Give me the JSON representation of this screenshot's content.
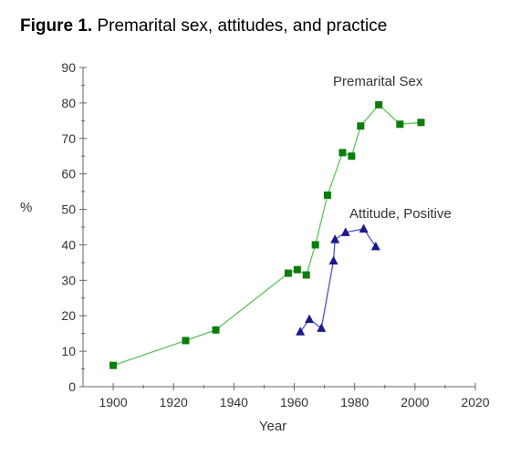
{
  "caption": {
    "figure_number": "Figure 1.",
    "title": "Premarital sex, attitudes, and practice"
  },
  "chart_data": {
    "type": "line",
    "xlabel": "Year",
    "ylabel": "%",
    "xlim": [
      1890,
      2020
    ],
    "ylim": [
      0,
      90
    ],
    "xticks": [
      1900,
      1920,
      1940,
      1960,
      1980,
      2000,
      2020
    ],
    "yticks": [
      0,
      10,
      20,
      30,
      40,
      50,
      60,
      70,
      80,
      90
    ],
    "grid": false,
    "legend": "none",
    "series": [
      {
        "name": "Premarital Sex",
        "marker": "square",
        "marker_color": "#0b7d0b",
        "line_color": "#5cc45c",
        "x": [
          1900,
          1924,
          1934,
          1958,
          1961,
          1964,
          1967,
          1971,
          1976,
          1979,
          1982,
          1988,
          1995,
          2002
        ],
        "y": [
          6,
          13,
          16,
          32,
          33,
          31.5,
          40,
          54,
          66,
          65,
          73.5,
          79.5,
          74,
          74.5
        ]
      },
      {
        "name": "Attitude, Positive",
        "marker": "triangle",
        "marker_color": "#1a1a8c",
        "line_color": "#4d57c9",
        "x": [
          1962,
          1965,
          1969,
          1973,
          1973.5,
          1977,
          1983,
          1987
        ],
        "y": [
          15.5,
          19,
          16.5,
          35.5,
          41.5,
          43.5,
          44.5,
          39.5
        ]
      }
    ]
  }
}
